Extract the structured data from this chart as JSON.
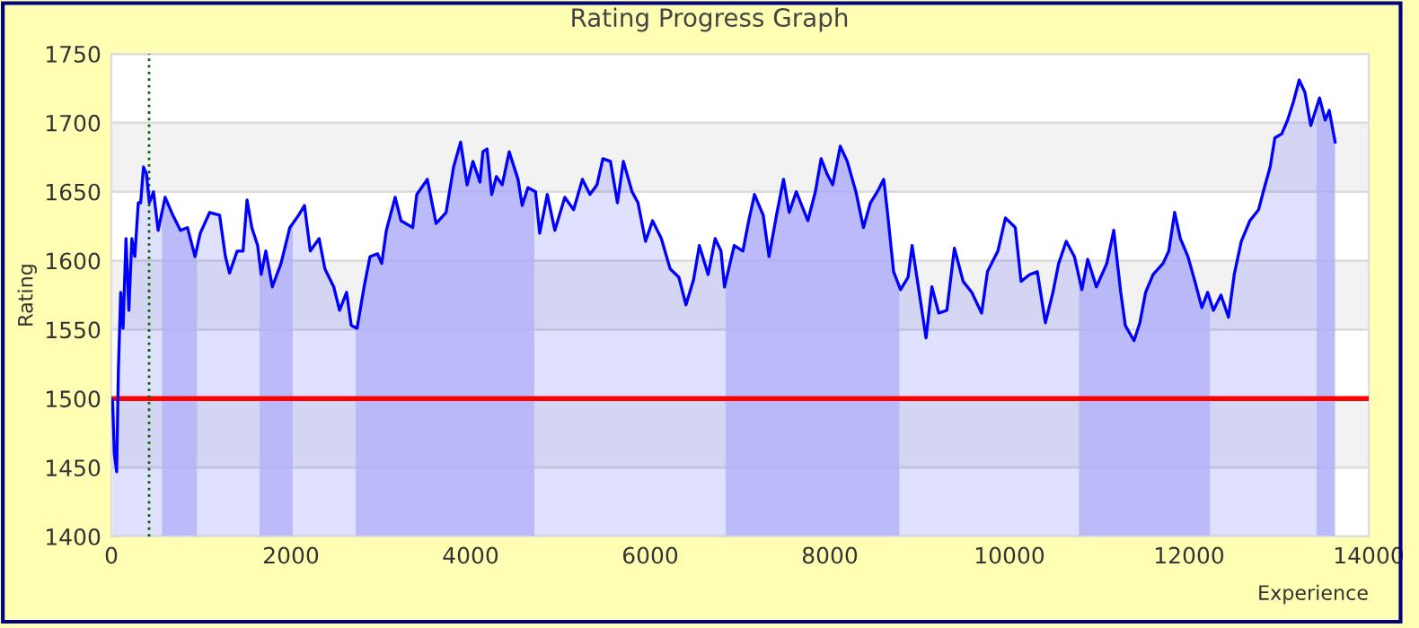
{
  "chart_data": {
    "type": "area",
    "title": "Rating Progress Graph",
    "xlabel": "Experience",
    "ylabel": "Rating",
    "xlim": [
      0,
      14000
    ],
    "xticks": [
      0,
      2000,
      4000,
      6000,
      8000,
      10000,
      12000,
      14000
    ],
    "ylim": [
      1400,
      1750
    ],
    "yticks": [
      1400,
      1450,
      1500,
      1550,
      1600,
      1650,
      1700,
      1750
    ],
    "grid": "y",
    "legend": false,
    "series": [
      {
        "color": "#0000ff",
        "x": [
          13,
          33,
          59,
          78,
          104,
          130,
          163,
          195,
          228,
          261,
          300,
          326,
          358,
          391,
          423,
          469,
          521,
          599,
          684,
          769,
          847,
          932,
          990,
          1095,
          1205,
          1270,
          1316,
          1401,
          1466,
          1511,
          1564,
          1629,
          1668,
          1720,
          1792,
          1889,
          1987,
          2085,
          2150,
          2215,
          2313,
          2378,
          2476,
          2541,
          2619,
          2671,
          2736,
          2814,
          2880,
          2964,
          3010,
          3062,
          3160,
          3225,
          3355,
          3401,
          3518,
          3616,
          3727,
          3811,
          3889,
          3961,
          4026,
          4104,
          4137,
          4183,
          4235,
          4287,
          4352,
          4430,
          4528,
          4574,
          4639,
          4723,
          4769,
          4854,
          4938,
          5049,
          5147,
          5245,
          5329,
          5407,
          5473,
          5557,
          5635,
          5701,
          5798,
          5864,
          5948,
          6026,
          6124,
          6222,
          6319,
          6398,
          6482,
          6547,
          6645,
          6723,
          6788,
          6827,
          6935,
          7032,
          7097,
          7161,
          7258,
          7323,
          7406,
          7484,
          7548,
          7626,
          7755,
          7839,
          7903,
          7968,
          8032,
          8116,
          8194,
          8290,
          8374,
          8452,
          8529,
          8600,
          8645,
          8710,
          8787,
          8871,
          8916,
          8981,
          9071,
          9136,
          9213,
          9303,
          9387,
          9484,
          9581,
          9690,
          9755,
          9871,
          9955,
          10065,
          10129,
          10226,
          10310,
          10400,
          10484,
          10548,
          10632,
          10723,
          10806,
          10871,
          10968,
          11084,
          11161,
          11239,
          11290,
          11387,
          11452,
          11516,
          11600,
          11710,
          11774,
          11839,
          11903,
          11987,
          12065,
          12142,
          12207,
          12271,
          12355,
          12439,
          12503,
          12581,
          12677,
          12774,
          12826,
          12903,
          12955,
          13032,
          13097,
          13161,
          13226,
          13290,
          13355,
          13452,
          13516,
          13561,
          13626
        ],
        "values": [
          1499,
          1460,
          1447,
          1520,
          1577,
          1551,
          1616,
          1564,
          1616,
          1603,
          1642,
          1642,
          1668,
          1663,
          1642,
          1650,
          1622,
          1646,
          1633,
          1622,
          1624,
          1603,
          1620,
          1635,
          1633,
          1603,
          1591,
          1607,
          1607,
          1644,
          1624,
          1611,
          1590,
          1607,
          1581,
          1598,
          1624,
          1633,
          1640,
          1607,
          1616,
          1594,
          1581,
          1564,
          1577,
          1553,
          1551,
          1581,
          1603,
          1605,
          1598,
          1622,
          1646,
          1629,
          1624,
          1648,
          1659,
          1627,
          1635,
          1668,
          1686,
          1655,
          1672,
          1657,
          1679,
          1681,
          1648,
          1661,
          1655,
          1679,
          1659,
          1640,
          1653,
          1650,
          1620,
          1648,
          1622,
          1646,
          1637,
          1659,
          1648,
          1655,
          1674,
          1672,
          1642,
          1672,
          1650,
          1642,
          1614,
          1629,
          1616,
          1594,
          1588,
          1568,
          1586,
          1611,
          1590,
          1616,
          1607,
          1581,
          1611,
          1607,
          1629,
          1648,
          1633,
          1603,
          1633,
          1659,
          1635,
          1650,
          1629,
          1650,
          1674,
          1663,
          1655,
          1683,
          1672,
          1650,
          1624,
          1642,
          1650,
          1659,
          1633,
          1592,
          1579,
          1588,
          1611,
          1583,
          1544,
          1581,
          1562,
          1564,
          1609,
          1585,
          1577,
          1562,
          1592,
          1607,
          1631,
          1624,
          1585,
          1590,
          1592,
          1555,
          1577,
          1598,
          1614,
          1603,
          1579,
          1601,
          1581,
          1598,
          1622,
          1577,
          1553,
          1542,
          1555,
          1577,
          1590,
          1598,
          1607,
          1635,
          1616,
          1603,
          1585,
          1566,
          1577,
          1564,
          1575,
          1559,
          1590,
          1614,
          1629,
          1637,
          1650,
          1668,
          1689,
          1692,
          1702,
          1715,
          1731,
          1722,
          1698,
          1718,
          1702,
          1709,
          1686
        ]
      }
    ],
    "ref_lines": [
      {
        "axis": "y",
        "value": 1500,
        "color": "#ff0000",
        "line_style": "solid"
      },
      {
        "axis": "x",
        "value": 420,
        "color": "#006400",
        "line_style": "dotted"
      }
    ],
    "bands": [
      {
        "axis": "x",
        "from": 564,
        "to": 953,
        "color": "#cacaf8"
      },
      {
        "axis": "x",
        "from": 1650,
        "to": 2020,
        "color": "#cacaf8"
      },
      {
        "axis": "x",
        "from": 2720,
        "to": 4710,
        "color": "#cacaf8"
      },
      {
        "axis": "x",
        "from": 6839,
        "to": 8774,
        "color": "#cacaf8"
      },
      {
        "axis": "x",
        "from": 10774,
        "to": 12232,
        "color": "#cacaf8"
      },
      {
        "axis": "x",
        "from": 13419,
        "to": 13626,
        "color": "#cacaf8"
      }
    ]
  }
}
